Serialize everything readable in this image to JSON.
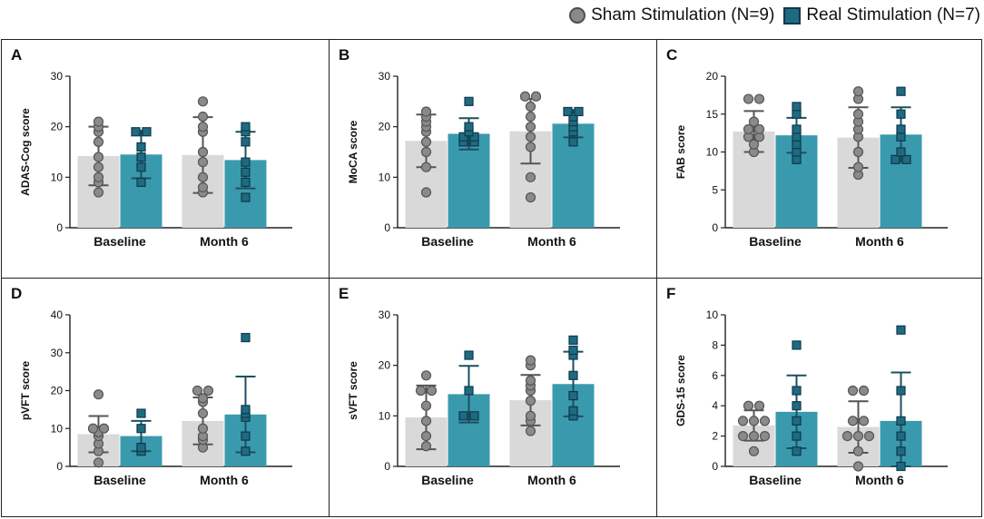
{
  "legend": {
    "sham_label": "Sham Stimulation (N=9)",
    "real_label": "Real Stimulation (N=7)"
  },
  "colors": {
    "sham_bar": "#d9d9d9",
    "sham_point": "#8a8a8a",
    "sham_edge": "#555555",
    "real_bar": "#3a9aad",
    "real_point": "#1f6a80",
    "real_edge": "#0e3a4a",
    "error_sham": "#555555",
    "error_real": "#1e4f5f"
  },
  "chart_data": [
    {
      "panel": "A",
      "type": "bar",
      "ylabel": "ADAS-Cog score",
      "categories": [
        "Baseline",
        "Month 6"
      ],
      "ylim": [
        0,
        30
      ],
      "yticks": [
        0,
        10,
        20,
        30
      ],
      "series": [
        {
          "name": "Sham Stimulation (N=9)",
          "means": [
            14.2,
            14.4
          ],
          "sd": [
            5.8,
            7.5
          ],
          "points": [
            [
              7,
              9,
              12,
              14,
              17,
              19,
              20,
              21,
              10
            ],
            [
              7,
              8,
              10,
              13,
              15,
              19,
              20,
              22,
              25
            ]
          ]
        },
        {
          "name": "Real Stimulation (N=7)",
          "means": [
            14.5,
            13.4
          ],
          "sd": [
            4.7,
            5.6
          ],
          "points": [
            [
              9,
              12,
              14,
              16,
              19,
              19
            ],
            [
              6,
              9,
              11,
              13,
              17,
              19,
              20
            ]
          ]
        }
      ]
    },
    {
      "panel": "B",
      "type": "bar",
      "ylabel": "MoCA score",
      "categories": [
        "Baseline",
        "Month 6"
      ],
      "ylim": [
        0,
        30
      ],
      "yticks": [
        0,
        10,
        20,
        30
      ],
      "series": [
        {
          "name": "Sham Stimulation (N=9)",
          "means": [
            17.2,
            19.1
          ],
          "sd": [
            5.2,
            6.4
          ],
          "points": [
            [
              7,
              12,
              15,
              17,
              19,
              20,
              21,
              22,
              23
            ],
            [
              6,
              10,
              16,
              18,
              20,
              22,
              24,
              26,
              26
            ]
          ]
        },
        {
          "name": "Real Stimulation (N=7)",
          "means": [
            18.6,
            20.6
          ],
          "sd": [
            3.1,
            2.7
          ],
          "points": [
            [
              17,
              17,
              18,
              18,
              19,
              20,
              25
            ],
            [
              17,
              19,
              20,
              21,
              22,
              23,
              23
            ]
          ]
        }
      ]
    },
    {
      "panel": "C",
      "type": "bar",
      "ylabel": "FAB score",
      "categories": [
        "Baseline",
        "Month 6"
      ],
      "ylim": [
        0,
        20
      ],
      "yticks": [
        0,
        5,
        10,
        15,
        20
      ],
      "series": [
        {
          "name": "Sham Stimulation (N=9)",
          "means": [
            12.7,
            11.9
          ],
          "sd": [
            2.7,
            4.0
          ],
          "points": [
            [
              10,
              11,
              12,
              12,
              13,
              13,
              14,
              17,
              17
            ],
            [
              7,
              8,
              10,
              12,
              13,
              14,
              15,
              17,
              18
            ]
          ]
        },
        {
          "name": "Real Stimulation (N=7)",
          "means": [
            12.2,
            12.3
          ],
          "sd": [
            2.3,
            3.6
          ],
          "points": [
            [
              9,
              10,
              11,
              12,
              13,
              15,
              16
            ],
            [
              9,
              9,
              10,
              12,
              13,
              15,
              18
            ]
          ]
        }
      ]
    },
    {
      "panel": "D",
      "type": "bar",
      "ylabel": "pVFT score",
      "categories": [
        "Baseline",
        "Month 6"
      ],
      "ylim": [
        0,
        40
      ],
      "yticks": [
        0,
        10,
        20,
        30,
        40
      ],
      "series": [
        {
          "name": "Sham Stimulation (N=9)",
          "means": [
            8.5,
            12.0
          ],
          "sd": [
            4.8,
            6.2
          ],
          "points": [
            [
              1,
              4,
              6,
              8,
              9,
              10,
              10,
              19
            ],
            [
              5,
              7,
              8,
              10,
              14,
              17,
              18,
              20,
              20
            ]
          ]
        },
        {
          "name": "Real Stimulation (N=7)",
          "means": [
            8.0,
            13.7
          ],
          "sd": [
            4.0,
            10.0
          ],
          "points": [
            [
              4,
              5,
              10,
              14
            ],
            [
              4,
              8,
              13,
              14,
              15,
              34
            ]
          ]
        }
      ]
    },
    {
      "panel": "E",
      "type": "bar",
      "ylabel": "sVFT score",
      "categories": [
        "Baseline",
        "Month 6"
      ],
      "ylim": [
        0,
        30
      ],
      "yticks": [
        0,
        10,
        20,
        30
      ],
      "series": [
        {
          "name": "Sham Stimulation (N=9)",
          "means": [
            9.7,
            13.1
          ],
          "sd": [
            6.3,
            5.0
          ],
          "points": [
            [
              4,
              6,
              9,
              12,
              15,
              18,
              15
            ],
            [
              7,
              9,
              10,
              13,
              15,
              16,
              17,
              20,
              21
            ]
          ]
        },
        {
          "name": "Real Stimulation (N=7)",
          "means": [
            14.3,
            16.3
          ],
          "sd": [
            5.6,
            6.4
          ],
          "points": [
            [
              10,
              10,
              15,
              22
            ],
            [
              10,
              11,
              14,
              18,
              22,
              23,
              25
            ]
          ]
        }
      ]
    },
    {
      "panel": "F",
      "type": "bar",
      "ylabel": "GDS-15 score",
      "categories": [
        "Baseline",
        "Month 6"
      ],
      "ylim": [
        0,
        10
      ],
      "yticks": [
        0,
        2,
        4,
        6,
        8,
        10
      ],
      "series": [
        {
          "name": "Sham Stimulation (N=9)",
          "means": [
            2.7,
            2.6
          ],
          "sd": [
            1.0,
            1.7
          ],
          "points": [
            [
              2,
              2,
              2,
              3,
              3,
              3,
              4,
              4,
              1
            ],
            [
              0,
              1,
              2,
              2,
              2,
              3,
              3,
              5,
              5
            ]
          ]
        },
        {
          "name": "Real Stimulation (N=7)",
          "means": [
            3.6,
            3.0
          ],
          "sd": [
            2.4,
            3.2
          ],
          "points": [
            [
              1,
              2,
              3,
              4,
              5,
              8
            ],
            [
              0,
              1,
              2,
              3,
              5,
              9
            ]
          ]
        }
      ]
    }
  ]
}
